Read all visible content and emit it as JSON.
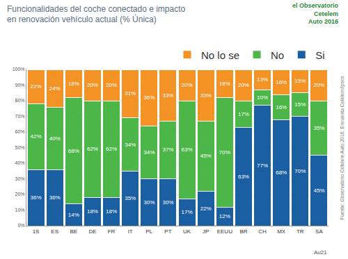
{
  "chart_data": {
    "type": "bar",
    "title": "Funcionalidades del coche conectado e impacto en renovación vehículo actual (% Única)",
    "annotations": {
      "brand": [
        "el Observatorio",
        "Cetelem",
        "Auto 2016"
      ],
      "page": "Au21",
      "source": "Fuente: Observatorio Cetelem Auto 2016. Encuesta Cetelem/Ipsos"
    },
    "categories": [
      "1S",
      "ES",
      "BE",
      "DE",
      "FR",
      "IT",
      "PL",
      "PT",
      "UK",
      "JP",
      "EEUU",
      "BR",
      "CH",
      "MX",
      "TR",
      "SA"
    ],
    "series": [
      {
        "name": "Si",
        "color": "#1b5fa3",
        "values": [
          36,
          36,
          14,
          18,
          18,
          35,
          30,
          30,
          17,
          22,
          12,
          63,
          77,
          68,
          70,
          45
        ],
        "value_labels": [
          "36%",
          "36%",
          "14%",
          "18%",
          "18%",
          "35%",
          "30%",
          "30%",
          "17%",
          "22%",
          "12%",
          "63%",
          "77%",
          "68%",
          "70%",
          "45%"
        ]
      },
      {
        "name": "No",
        "color": "#4cb748",
        "values": [
          42,
          40,
          68,
          62,
          62,
          34,
          34,
          37,
          63,
          45,
          70,
          17,
          10,
          16,
          15,
          35
        ],
        "value_labels": [
          "42%",
          "40%",
          "68%",
          "62%",
          "62%",
          "34%",
          "34%",
          "37%",
          "63%",
          "45%",
          "70%",
          "17%",
          "10%",
          "16%",
          "15%",
          "35%"
        ]
      },
      {
        "name": "No lo se",
        "color": "#f39325",
        "values": [
          22,
          24,
          18,
          20,
          20,
          31,
          36,
          33,
          20,
          33,
          18,
          20,
          13,
          16,
          15,
          20
        ],
        "value_labels": [
          "22%",
          "24%",
          "18%",
          "20%",
          "20%",
          "31%",
          "36%",
          "33%",
          "20%",
          "33%",
          "18%",
          "20%",
          "13%",
          "16%",
          "15%",
          "20%"
        ]
      }
    ],
    "ylim": [
      0,
      100
    ],
    "yticks": [
      {
        "value": 0,
        "label": "0%"
      },
      {
        "value": 10,
        "label": "10%"
      },
      {
        "value": 20,
        "label": "20%"
      },
      {
        "value": 30,
        "label": "30%"
      },
      {
        "value": 40,
        "label": "40%"
      },
      {
        "value": 50,
        "label": "50%"
      },
      {
        "value": 60,
        "label": "60%"
      },
      {
        "value": 70,
        "label": "70%"
      },
      {
        "value": 80,
        "label": "80%"
      },
      {
        "value": 90,
        "label": "90%"
      },
      {
        "value": 100,
        "label": "100%"
      }
    ],
    "stacked": true,
    "data_labels": true,
    "grid": true,
    "legend": "top right"
  }
}
